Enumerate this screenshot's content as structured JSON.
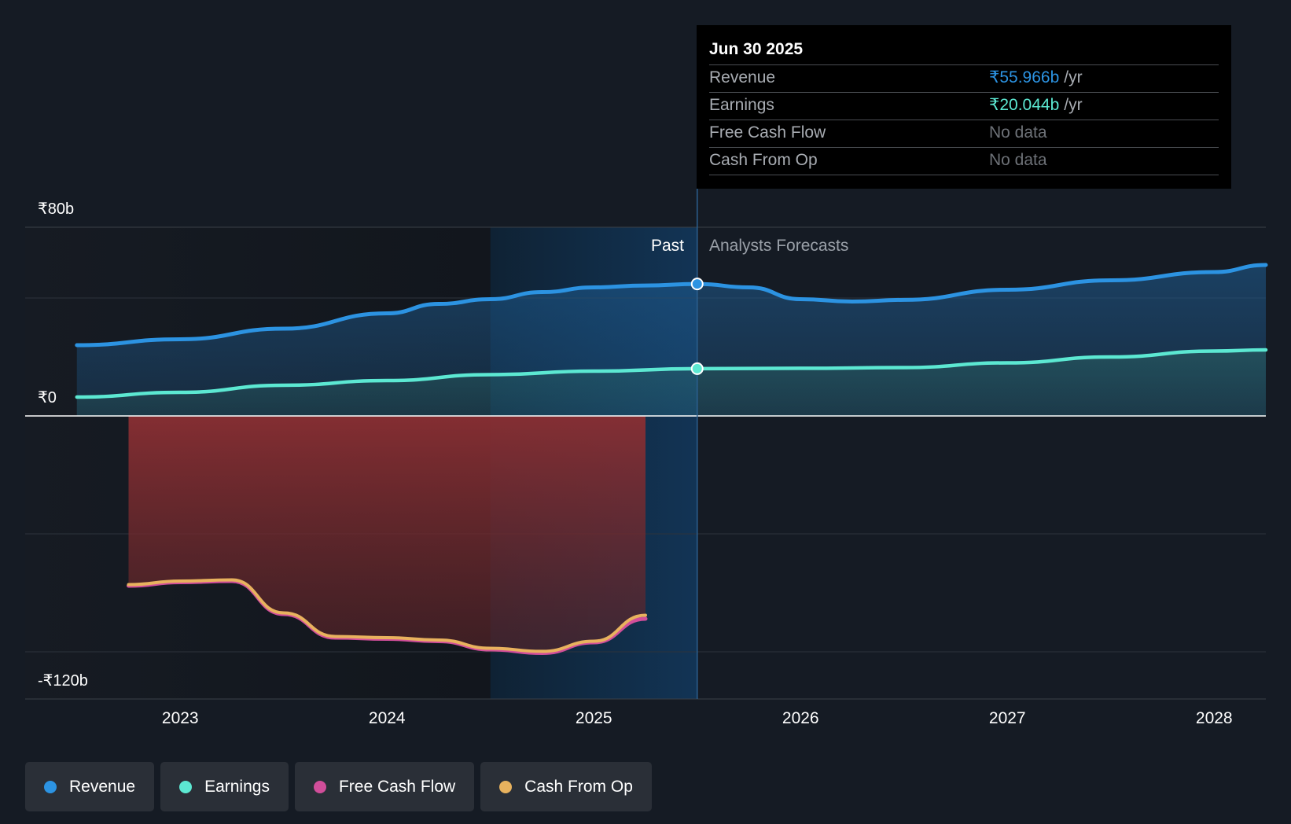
{
  "chart_data": {
    "type": "area",
    "y_axis": {
      "tick_labels": [
        "₹80b",
        "₹0",
        "-₹120b"
      ],
      "ylim": [
        -120,
        80
      ],
      "gridlines": [
        80,
        50,
        0,
        -50,
        -100
      ]
    },
    "x_axis": {
      "tick_labels": [
        "2023",
        "2024",
        "2025",
        "2026",
        "2027",
        "2028"
      ],
      "tick_years": [
        2023,
        2024,
        2025,
        2026,
        2027,
        2028
      ],
      "xlim": [
        2022.25,
        2028.25
      ]
    },
    "past_label": "Past",
    "forecast_label": "Analysts Forecasts",
    "present": 2025.5,
    "highlight_start": 2024.5,
    "series": [
      {
        "name": "Revenue",
        "color": "#2c93e2",
        "points": [
          [
            2022.5,
            30.0
          ],
          [
            2023.0,
            32.5
          ],
          [
            2023.5,
            37.0
          ],
          [
            2024.0,
            43.5
          ],
          [
            2024.25,
            47.5
          ],
          [
            2024.5,
            49.5
          ],
          [
            2024.75,
            52.5
          ],
          [
            2025.0,
            54.5
          ],
          [
            2025.25,
            55.3
          ],
          [
            2025.5,
            55.966
          ],
          [
            2025.75,
            54.5
          ],
          [
            2026.0,
            49.5
          ],
          [
            2026.25,
            48.5
          ],
          [
            2026.5,
            49.2
          ],
          [
            2027.0,
            53.5
          ],
          [
            2027.5,
            57.5
          ],
          [
            2028.0,
            61.0
          ],
          [
            2028.25,
            64.0
          ]
        ]
      },
      {
        "name": "Earnings",
        "color": "#5ce8d2",
        "points": [
          [
            2022.5,
            8.0
          ],
          [
            2023.0,
            10.0
          ],
          [
            2023.5,
            13.0
          ],
          [
            2024.0,
            15.0
          ],
          [
            2024.5,
            17.5
          ],
          [
            2025.0,
            19.0
          ],
          [
            2025.5,
            20.044
          ],
          [
            2026.0,
            20.2
          ],
          [
            2026.5,
            20.5
          ],
          [
            2027.0,
            22.5
          ],
          [
            2027.5,
            25.0
          ],
          [
            2028.0,
            27.5
          ],
          [
            2028.25,
            28.0
          ]
        ]
      },
      {
        "name": "Free Cash Flow",
        "color": "#d14e9a",
        "points": [
          [
            2022.75,
            -72.0
          ],
          [
            2023.0,
            -70.5
          ],
          [
            2023.25,
            -70.0
          ],
          [
            2023.5,
            -84.0
          ],
          [
            2023.75,
            -94.0
          ],
          [
            2024.0,
            -94.5
          ],
          [
            2024.25,
            -95.5
          ],
          [
            2024.5,
            -99.0
          ],
          [
            2024.75,
            -100.5
          ],
          [
            2025.0,
            -96.0
          ],
          [
            2025.25,
            -86.0
          ]
        ]
      },
      {
        "name": "Cash From Op",
        "color": "#e8b25e",
        "points": [
          [
            2022.75,
            -71.5
          ],
          [
            2023.0,
            -70.0
          ],
          [
            2023.25,
            -69.5
          ],
          [
            2023.5,
            -83.5
          ],
          [
            2023.75,
            -93.5
          ],
          [
            2024.0,
            -94.0
          ],
          [
            2024.25,
            -95.0
          ],
          [
            2024.5,
            -98.5
          ],
          [
            2024.75,
            -99.8
          ],
          [
            2025.0,
            -95.5
          ],
          [
            2025.25,
            -84.5
          ]
        ]
      }
    ]
  },
  "tooltip": {
    "date": "Jun 30 2025",
    "rows": [
      {
        "label": "Revenue",
        "value": "₹55.966b",
        "unit": "/yr"
      },
      {
        "label": "Earnings",
        "value": "₹20.044b",
        "unit": "/yr"
      },
      {
        "label": "Free Cash Flow",
        "value": "No data"
      },
      {
        "label": "Cash From Op",
        "value": "No data"
      }
    ]
  },
  "legend": [
    {
      "label": "Revenue",
      "color": "#2c93e2"
    },
    {
      "label": "Earnings",
      "color": "#5ce8d2"
    },
    {
      "label": "Free Cash Flow",
      "color": "#d14e9a"
    },
    {
      "label": "Cash From Op",
      "color": "#e8b25e"
    }
  ]
}
